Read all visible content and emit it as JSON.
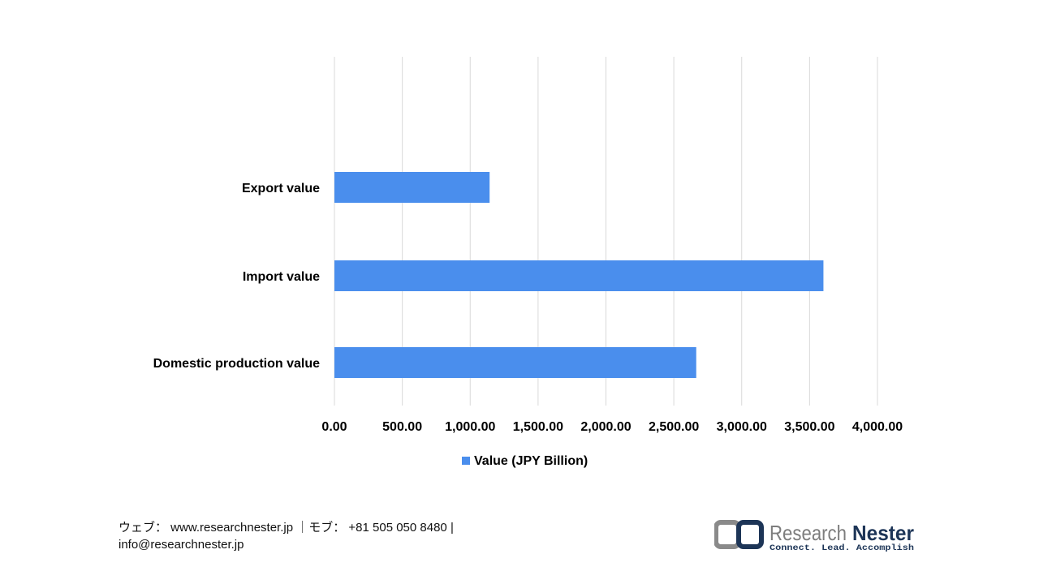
{
  "chart_data": {
    "type": "bar",
    "orientation": "horizontal",
    "categories": [
      "Export value",
      "Import value",
      "Domestic production value"
    ],
    "series": [
      {
        "name": "Value (JPY Billion)",
        "values": [
          1143,
          3602,
          2665
        ],
        "color": "#4a8eed"
      }
    ],
    "xlim": [
      0,
      4000
    ],
    "xticks": [
      "0.00",
      "500.00",
      "1,000.00",
      "1,500.00",
      "2,000.00",
      "2,500.00",
      "3,000.00",
      "3,500.00",
      "4,000.00"
    ],
    "grid": true,
    "legend_position": "bottom"
  },
  "footer": {
    "line1": "ウェブ： www.researchnester.jp ｜モブ： +81 505 050 8480 |",
    "line2": "info@researchnester.jp"
  },
  "logo": {
    "name": "Research Nester",
    "tagline": "Connect. Lead. Accomplish"
  }
}
